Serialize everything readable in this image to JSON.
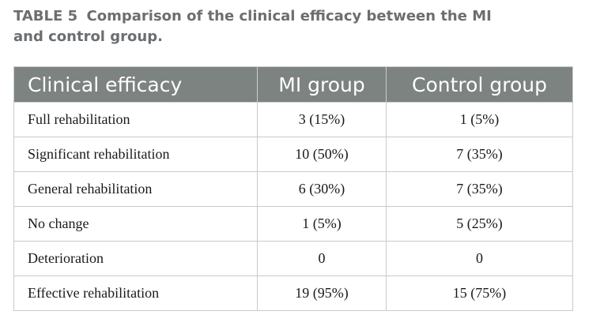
{
  "caption": {
    "label": "TABLE 5",
    "title_line1": "Comparison of the clinical efficacy between the MI",
    "title_line2": "and control group."
  },
  "table": {
    "headers": [
      "Clinical efficacy",
      "MI group",
      "Control group"
    ],
    "rows": [
      [
        "Full rehabilitation",
        "3 (15%)",
        "1 (5%)"
      ],
      [
        "Significant rehabilitation",
        "10 (50%)",
        "7 (35%)"
      ],
      [
        "General rehabilitation",
        "6 (30%)",
        "7 (35%)"
      ],
      [
        "No change",
        "1 (5%)",
        "5 (25%)"
      ],
      [
        "Deterioration",
        "0",
        "0"
      ],
      [
        "Effective rehabilitation",
        "19 (95%)",
        "15 (75%)"
      ]
    ]
  },
  "colors": {
    "header_background": "#7d8381",
    "header_text": "#ffffff",
    "caption_text": "#6b6e71",
    "border": "#c8cbca"
  }
}
